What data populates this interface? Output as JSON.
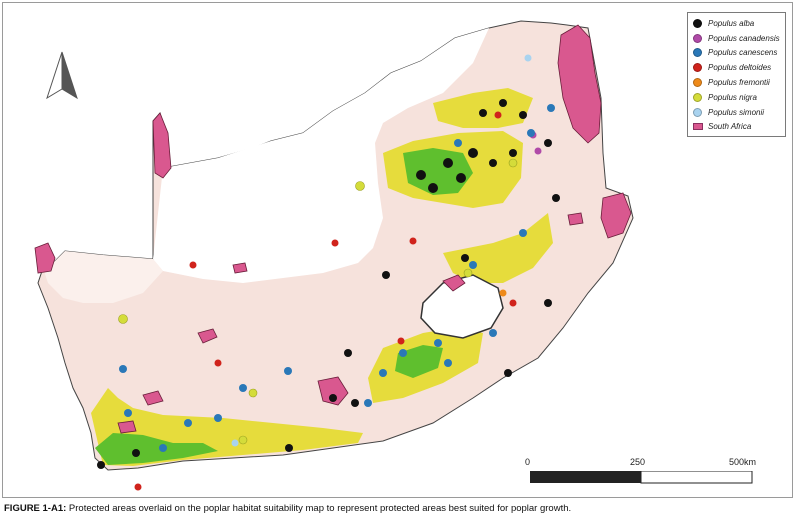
{
  "legend": {
    "items": [
      {
        "label": "Populus alba",
        "color": "#111111"
      },
      {
        "label": "Populus canadensis",
        "color": "#b04aa8"
      },
      {
        "label": "Populus canescens",
        "color": "#2a78b8"
      },
      {
        "label": "Populus deltoides",
        "color": "#d0231c"
      },
      {
        "label": "Populus fremontii",
        "color": "#ee8a1a"
      },
      {
        "label": "Populus nigra",
        "color": "#d4dc3a"
      },
      {
        "label": "Populus simonii",
        "color": "#a9d3ef"
      }
    ],
    "region_label": "South Africa",
    "region_color": "#d9588f"
  },
  "scale": {
    "tick_0": "0",
    "tick_1": "250",
    "tick_2": "500km"
  },
  "caption": {
    "label": "FIGURE 1-A1:",
    "text": " Protected areas overlaid on the poplar habitat suitability map to represent protected areas best suited for poplar growth."
  },
  "north_arrow": "north-arrow-icon"
}
